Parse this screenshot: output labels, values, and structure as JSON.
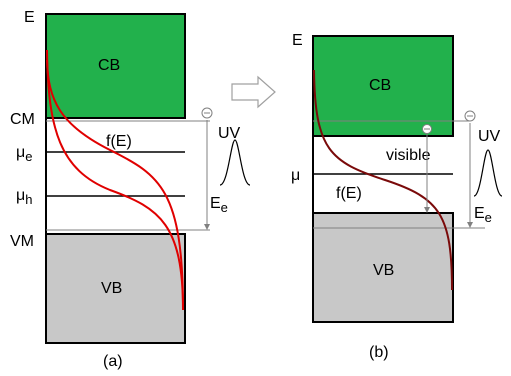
{
  "colors": {
    "conduction_band": "#22b14c",
    "valence_band": "#c8c8c8",
    "curve_a": "#e00000",
    "curve_b": "#7a0a0a",
    "arrow_outline": "#a0a0a0",
    "level_lines": "#000000",
    "thin_lines": "#808080"
  },
  "panel_a": {
    "energy_axis_label": "E",
    "conduction_band_label": "CB",
    "valence_band_label": "VB",
    "cm_label": "CM",
    "vm_label": "VM",
    "mu_e_label": "μ",
    "mu_e_subscript": "e",
    "mu_h_label": "μ",
    "mu_h_subscript": "h",
    "fermi_function_label": "f(E)",
    "uv_label": "UV",
    "energy_e_label": "E",
    "energy_e_subscript": "e",
    "panel_caption": "(a)",
    "electron_icon": "minus-circle-icon"
  },
  "panel_b": {
    "energy_axis_label": "E",
    "conduction_band_label": "CB",
    "valence_band_label": "VB",
    "mu_label": "μ",
    "fermi_function_label": "f(E)",
    "visible_label": "visible",
    "uv_label": "UV",
    "energy_e_label": "E",
    "energy_e_subscript": "e",
    "panel_caption": "(b)",
    "electron_icon": "minus-circle-icon"
  },
  "transition_arrow_icon": "hollow-right-arrow-icon"
}
